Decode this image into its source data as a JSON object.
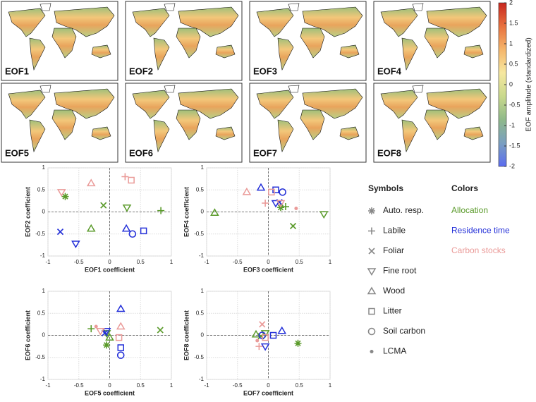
{
  "maps": {
    "panels": [
      "EOF1",
      "EOF2",
      "EOF3",
      "EOF4",
      "EOF5",
      "EOF6",
      "EOF7",
      "EOF8"
    ],
    "colorbar": {
      "label": "EOF amplitude (standardized)",
      "lim": [
        -2,
        2
      ],
      "ticks": [
        -2,
        -1.5,
        -1,
        -0.5,
        0,
        0.5,
        1,
        1.5,
        2
      ],
      "colormap": [
        "#5b6cf0",
        "#7a9fc0",
        "#8fb98a",
        "#c9d98c",
        "#f6e8a0",
        "#f5b56a",
        "#e8713e",
        "#c8261f"
      ]
    }
  },
  "legend": {
    "symbols_title": "Symbols",
    "symbols": [
      "Auto. resp.",
      "Labile",
      "Foliar",
      "Fine root",
      "Wood",
      "Litter",
      "Soil carbon",
      "LCMA"
    ],
    "colors_title": "Colors",
    "groups": [
      {
        "name": "Allocation",
        "color": "#5a9a2a"
      },
      {
        "name": "Residence time",
        "color": "#2430d8"
      },
      {
        "name": "Carbon stocks",
        "color": "#ea9a98"
      }
    ]
  },
  "chart_data": [
    {
      "type": "scatter",
      "xlabel": "EOF1 coefficient",
      "ylabel": "EOF2 coefficient",
      "xlim": [
        -1,
        1
      ],
      "ylim": [
        -1,
        1
      ],
      "xticks": [
        -1,
        -0.5,
        0,
        0.5,
        1
      ],
      "yticks": [
        -1,
        -0.5,
        0,
        0.5,
        1
      ],
      "grid": true,
      "series": [
        {
          "x": [
            -0.72,
            0.83,
            -0.1,
            0.28,
            -0.3,
            null,
            null,
            null
          ],
          "y": [
            0.35,
            0.03,
            0.15,
            0.1,
            -0.38,
            null,
            null,
            null
          ]
        },
        {
          "x": [
            null,
            null,
            -0.8,
            -0.55,
            0.27,
            0.55,
            0.37,
            null
          ],
          "y": [
            null,
            null,
            -0.45,
            -0.72,
            -0.38,
            -0.43,
            -0.5,
            null
          ]
        },
        {
          "x": [
            null,
            0.25,
            null,
            -0.78,
            -0.3,
            0.35,
            null,
            null
          ],
          "y": [
            null,
            0.8,
            null,
            0.45,
            0.65,
            0.72,
            null,
            null
          ]
        }
      ]
    },
    {
      "type": "scatter",
      "xlabel": "EOF3 coefficient",
      "ylabel": "EOF4 coefficient",
      "xlim": [
        -1,
        1
      ],
      "ylim": [
        -1,
        1
      ],
      "xticks": [
        -1,
        -0.5,
        0,
        0.5,
        1
      ],
      "yticks": [
        -1,
        -0.5,
        0,
        0.5,
        1
      ],
      "grid": true,
      "series": [
        {
          "x": [
            0.2,
            0.28,
            0.4,
            0.9,
            -0.87,
            null,
            null,
            null
          ],
          "y": [
            0.1,
            0.12,
            -0.32,
            -0.05,
            -0.02,
            null,
            null,
            null
          ]
        },
        {
          "x": [
            null,
            null,
            0.18,
            0.12,
            -0.12,
            0.12,
            0.23,
            null
          ],
          "y": [
            null,
            null,
            0.22,
            0.2,
            0.55,
            0.5,
            0.45,
            null
          ]
        },
        {
          "x": [
            null,
            -0.05,
            null,
            0.2,
            -0.35,
            0.05,
            null,
            0.45
          ],
          "y": [
            null,
            0.2,
            null,
            0.2,
            0.45,
            0.45,
            null,
            0.08
          ]
        }
      ]
    },
    {
      "type": "scatter",
      "xlabel": "EOF5 coefficient",
      "ylabel": "EOF6 coefficient",
      "xlim": [
        -1,
        1
      ],
      "ylim": [
        -1,
        1
      ],
      "xticks": [
        -1,
        -0.5,
        0,
        0.5,
        1
      ],
      "yticks": [
        -1,
        -0.5,
        0,
        0.5,
        1
      ],
      "grid": true,
      "series": [
        {
          "x": [
            -0.05,
            -0.3,
            0.82,
            -0.05,
            0,
            null,
            null,
            null
          ],
          "y": [
            -0.22,
            0.15,
            0.12,
            0.05,
            -0.05,
            null,
            null,
            null
          ]
        },
        {
          "x": [
            null,
            null,
            -0.08,
            -0.05,
            0.18,
            0.18,
            0.18,
            null
          ],
          "y": [
            null,
            null,
            0.05,
            0.1,
            0.6,
            -0.28,
            -0.45,
            null
          ]
        },
        {
          "x": [
            null,
            null,
            null,
            -0.15,
            0.18,
            0.15,
            null,
            -0.22
          ],
          "y": [
            null,
            null,
            null,
            0.1,
            0.2,
            -0.05,
            null,
            0.2
          ]
        }
      ]
    },
    {
      "type": "scatter",
      "xlabel": "EOF7 coefficient",
      "ylabel": "EOF8 coefficient",
      "xlim": [
        -1,
        1
      ],
      "ylim": [
        -1,
        1
      ],
      "xticks": [
        -1,
        -0.5,
        0,
        0.5,
        1
      ],
      "yticks": [
        -1,
        -0.5,
        0,
        0.5,
        1
      ],
      "grid": true,
      "series": [
        {
          "x": [
            0.48,
            null,
            -0.12,
            -0.05,
            -0.2,
            null,
            null,
            null
          ],
          "y": [
            -0.18,
            null,
            -0.02,
            0.05,
            0.02,
            null,
            null,
            null
          ]
        },
        {
          "x": [
            null,
            null,
            null,
            -0.05,
            0.22,
            0.08,
            -0.1,
            null
          ],
          "y": [
            null,
            null,
            null,
            -0.25,
            0.1,
            0,
            0,
            null
          ]
        },
        {
          "x": [
            null,
            -0.15,
            -0.1,
            null,
            null,
            -0.05,
            null,
            -0.18
          ],
          "y": [
            null,
            -0.25,
            0.25,
            null,
            null,
            -0.05,
            null,
            -0.12
          ]
        }
      ]
    }
  ]
}
